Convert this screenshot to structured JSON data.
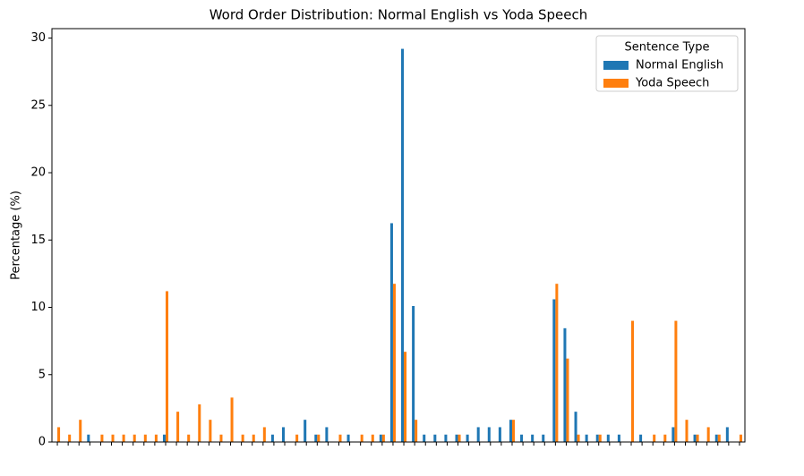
{
  "chart_data": {
    "type": "bar",
    "title": "Word Order Distribution: Normal English vs Yoda Speech",
    "ylabel": "Percentage (%)",
    "categories": [
      null,
      null,
      null,
      null,
      null,
      null,
      null,
      null,
      null,
      null,
      null,
      null,
      null,
      null,
      null,
      null,
      null,
      null,
      null,
      null,
      null,
      null,
      null,
      null,
      null,
      null,
      null,
      null,
      null,
      null,
      null,
      null,
      null,
      null,
      null,
      null,
      null,
      null,
      null,
      null,
      null,
      null,
      null,
      null,
      null,
      null,
      null,
      null,
      null,
      null,
      null,
      null,
      null,
      null,
      null,
      null,
      null,
      null,
      null,
      null,
      null,
      null,
      null,
      null
    ],
    "series": [
      {
        "name": "Normal English",
        "color": "#1f77b4",
        "values": [
          0,
          0,
          0,
          0.55,
          0,
          0,
          0,
          0,
          0,
          0,
          0.55,
          0,
          0,
          0,
          0,
          0,
          0,
          0,
          0,
          0,
          0.55,
          1.1,
          0,
          1.65,
          0.55,
          1.1,
          0,
          0.55,
          0,
          0,
          0.55,
          16.25,
          29.2,
          10.1,
          0.55,
          0.55,
          0.55,
          0.55,
          0.55,
          1.1,
          1.1,
          1.1,
          1.65,
          0.55,
          0.55,
          0.55,
          10.6,
          8.45,
          2.25,
          0.55,
          0.55,
          0.55,
          0.55,
          0,
          0.55,
          0,
          0,
          1.1,
          0,
          0.55,
          0,
          0.55,
          1.1,
          0
        ]
      },
      {
        "name": "Yoda Speech",
        "color": "#ff7f0e",
        "values": [
          1.1,
          0.55,
          1.65,
          0,
          0.55,
          0.55,
          0.55,
          0.55,
          0.55,
          0.55,
          11.2,
          2.25,
          0.55,
          2.8,
          1.65,
          0.55,
          3.3,
          0.55,
          0.55,
          1.1,
          0,
          0,
          0.55,
          0,
          0.55,
          0,
          0.55,
          0,
          0.55,
          0.55,
          0.55,
          11.75,
          6.7,
          1.65,
          0,
          0,
          0,
          0.55,
          0,
          0,
          0,
          0,
          1.65,
          0,
          0,
          0,
          11.75,
          6.2,
          0.55,
          0,
          0.55,
          0,
          0,
          9.0,
          0,
          0.55,
          0.55,
          9.0,
          1.65,
          0.55,
          1.1,
          0.55,
          0,
          0.55
        ]
      }
    ],
    "ylim": [
      0,
      30.7
    ],
    "yticks": [
      0,
      5,
      10,
      15,
      20,
      25,
      30
    ],
    "legend_title": "Sentence Type",
    "legend": "upper right"
  }
}
